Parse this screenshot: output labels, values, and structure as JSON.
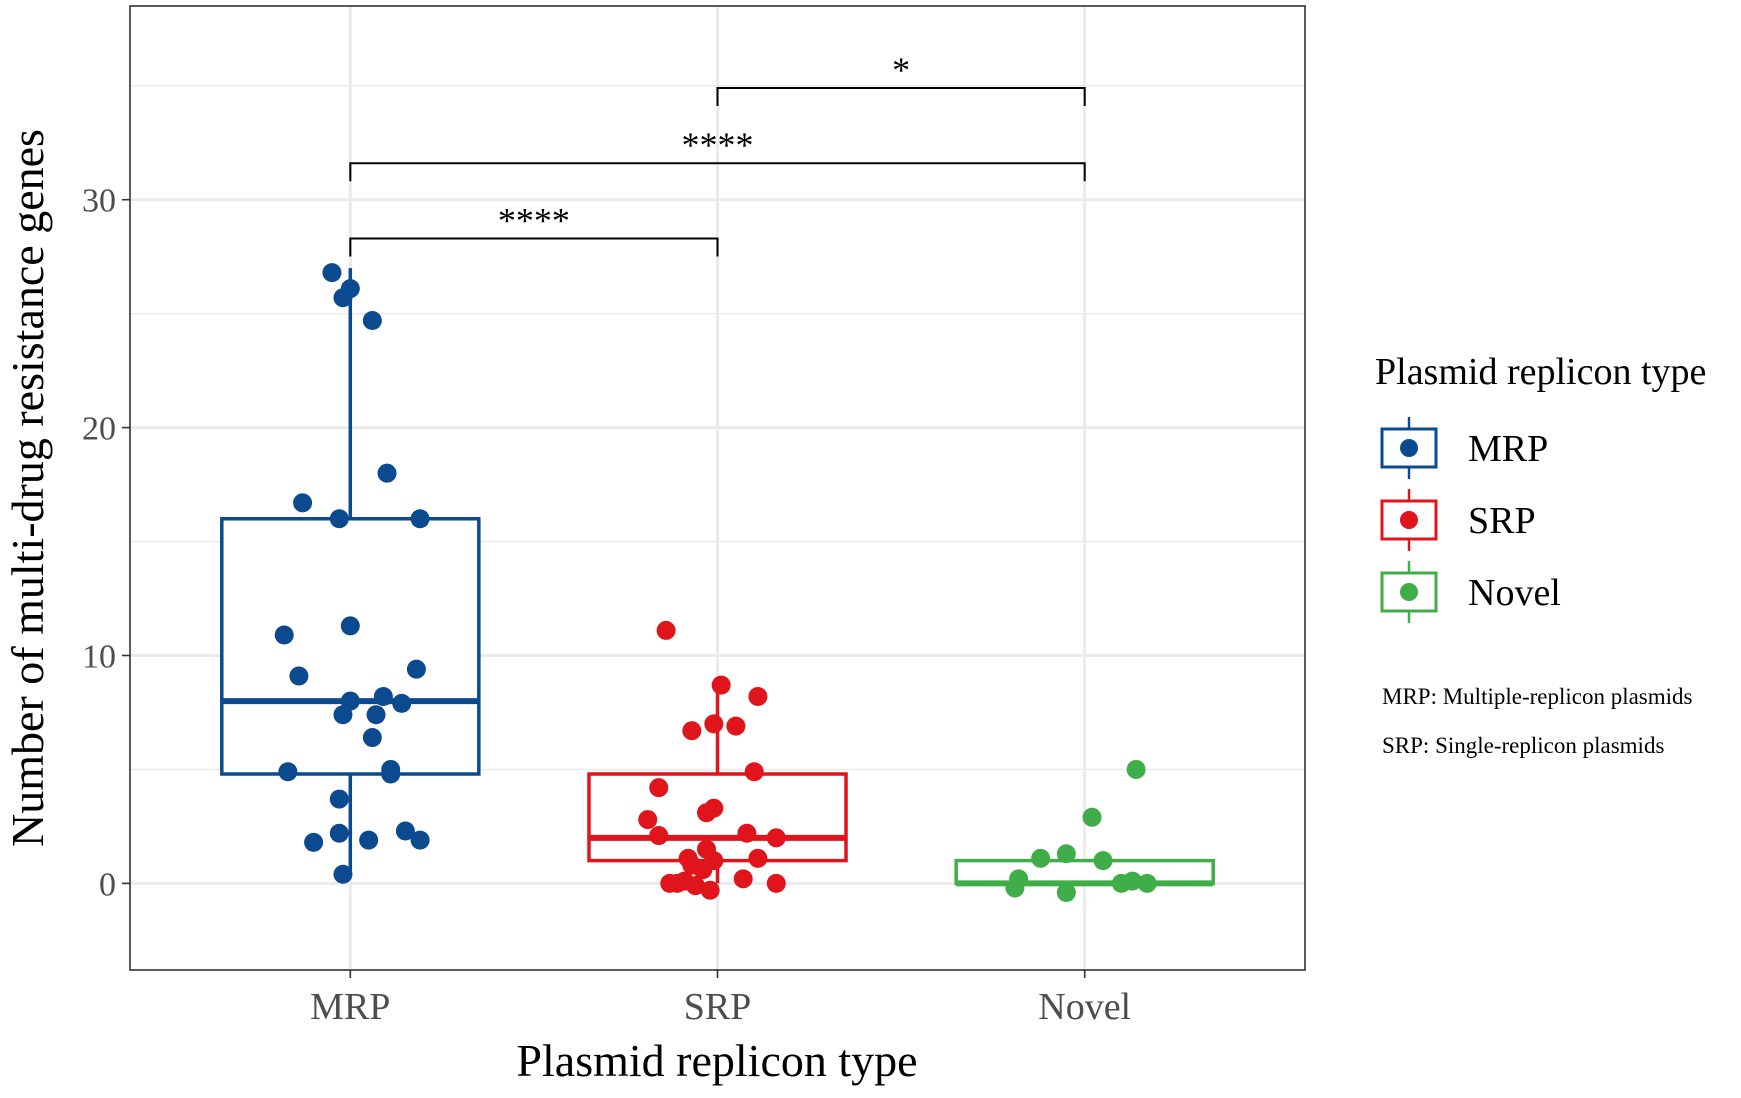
{
  "chart_data": {
    "type": "boxplot",
    "title": "",
    "xlabel": "Plasmid replicon type",
    "ylabel": "Number of multi-drug resistance genes",
    "ylim": [
      -3.8,
      38.5
    ],
    "yticks": [
      0,
      10,
      20,
      30
    ],
    "grid": true,
    "categories": [
      "MRP",
      "SRP",
      "Novel"
    ],
    "colors": {
      "MRP": "#0B4A8F",
      "SRP": "#E0141B",
      "Novel": "#3FAE49"
    },
    "boxes": [
      {
        "name": "MRP",
        "q1": 4.8,
        "median": 8.0,
        "q3": 16.0,
        "whisker_low": 0.3,
        "whisker_high": 27.0
      },
      {
        "name": "SRP",
        "q1": 1.0,
        "median": 2.0,
        "q3": 4.8,
        "whisker_low": 0.0,
        "whisker_high": 8.7
      },
      {
        "name": "Novel",
        "q1": 0.0,
        "median": 0.0,
        "q3": 1.0,
        "whisker_low": 0.0,
        "whisker_high": 1.0
      }
    ],
    "points": {
      "MRP": [
        {
          "dx": -0.05,
          "y": 26.8
        },
        {
          "dx": 0.0,
          "y": 26.1
        },
        {
          "dx": -0.02,
          "y": 25.7
        },
        {
          "dx": 0.06,
          "y": 24.7
        },
        {
          "dx": 0.1,
          "y": 18.0
        },
        {
          "dx": -0.13,
          "y": 16.7
        },
        {
          "dx": -0.03,
          "y": 16.0
        },
        {
          "dx": 0.19,
          "y": 16.0
        },
        {
          "dx": 0.0,
          "y": 11.3
        },
        {
          "dx": -0.18,
          "y": 10.9
        },
        {
          "dx": -0.14,
          "y": 9.1
        },
        {
          "dx": 0.18,
          "y": 9.4
        },
        {
          "dx": 0.0,
          "y": 8.0
        },
        {
          "dx": 0.09,
          "y": 8.2
        },
        {
          "dx": 0.14,
          "y": 7.9
        },
        {
          "dx": -0.02,
          "y": 7.4
        },
        {
          "dx": 0.07,
          "y": 7.4
        },
        {
          "dx": 0.06,
          "y": 6.4
        },
        {
          "dx": -0.17,
          "y": 4.9
        },
        {
          "dx": 0.11,
          "y": 5.0
        },
        {
          "dx": 0.11,
          "y": 4.8
        },
        {
          "dx": -0.03,
          "y": 3.7
        },
        {
          "dx": -0.03,
          "y": 2.2
        },
        {
          "dx": 0.15,
          "y": 2.3
        },
        {
          "dx": -0.1,
          "y": 1.8
        },
        {
          "dx": 0.05,
          "y": 1.9
        },
        {
          "dx": 0.19,
          "y": 1.9
        },
        {
          "dx": -0.02,
          "y": 0.4
        }
      ],
      "SRP": [
        {
          "dx": -0.14,
          "y": 11.1
        },
        {
          "dx": 0.01,
          "y": 8.7
        },
        {
          "dx": 0.11,
          "y": 8.2
        },
        {
          "dx": -0.07,
          "y": 6.7
        },
        {
          "dx": -0.01,
          "y": 7.0
        },
        {
          "dx": 0.05,
          "y": 6.9
        },
        {
          "dx": 0.1,
          "y": 4.9
        },
        {
          "dx": -0.16,
          "y": 4.2
        },
        {
          "dx": -0.03,
          "y": 3.1
        },
        {
          "dx": -0.01,
          "y": 3.3
        },
        {
          "dx": -0.19,
          "y": 2.8
        },
        {
          "dx": -0.16,
          "y": 2.1
        },
        {
          "dx": 0.08,
          "y": 2.2
        },
        {
          "dx": 0.16,
          "y": 2.0
        },
        {
          "dx": -0.03,
          "y": 1.5
        },
        {
          "dx": -0.08,
          "y": 1.1
        },
        {
          "dx": -0.01,
          "y": 1.0
        },
        {
          "dx": 0.11,
          "y": 1.1
        },
        {
          "dx": -0.07,
          "y": 0.8
        },
        {
          "dx": -0.04,
          "y": 0.6
        },
        {
          "dx": -0.09,
          "y": 0.1
        },
        {
          "dx": -0.13,
          "y": 0.0
        },
        {
          "dx": -0.11,
          "y": 0.0
        },
        {
          "dx": -0.06,
          "y": -0.1
        },
        {
          "dx": -0.02,
          "y": -0.3
        },
        {
          "dx": 0.07,
          "y": 0.2
        },
        {
          "dx": 0.16,
          "y": 0.0
        }
      ],
      "Novel": [
        {
          "dx": 0.14,
          "y": 5.0
        },
        {
          "dx": 0.02,
          "y": 2.9
        },
        {
          "dx": -0.12,
          "y": 1.1
        },
        {
          "dx": -0.05,
          "y": 1.3
        },
        {
          "dx": 0.05,
          "y": 1.0
        },
        {
          "dx": -0.18,
          "y": 0.2
        },
        {
          "dx": -0.19,
          "y": -0.2
        },
        {
          "dx": -0.05,
          "y": -0.4
        },
        {
          "dx": 0.1,
          "y": 0.0
        },
        {
          "dx": 0.13,
          "y": 0.1
        },
        {
          "dx": 0.17,
          "y": 0.0
        }
      ]
    },
    "significance": [
      {
        "from": "MRP",
        "to": "SRP",
        "y": 28.3,
        "label": "****"
      },
      {
        "from": "MRP",
        "to": "Novel",
        "y": 31.6,
        "label": "****"
      },
      {
        "from": "SRP",
        "to": "Novel",
        "y": 34.9,
        "label": "*"
      }
    ],
    "legend": {
      "title": "Plasmid replicon type",
      "position": "right",
      "items": [
        "MRP",
        "SRP",
        "Novel"
      ],
      "notes": [
        "MRP: Multiple-replicon plasmids",
        "SRP: Single-replicon plasmids"
      ]
    }
  }
}
